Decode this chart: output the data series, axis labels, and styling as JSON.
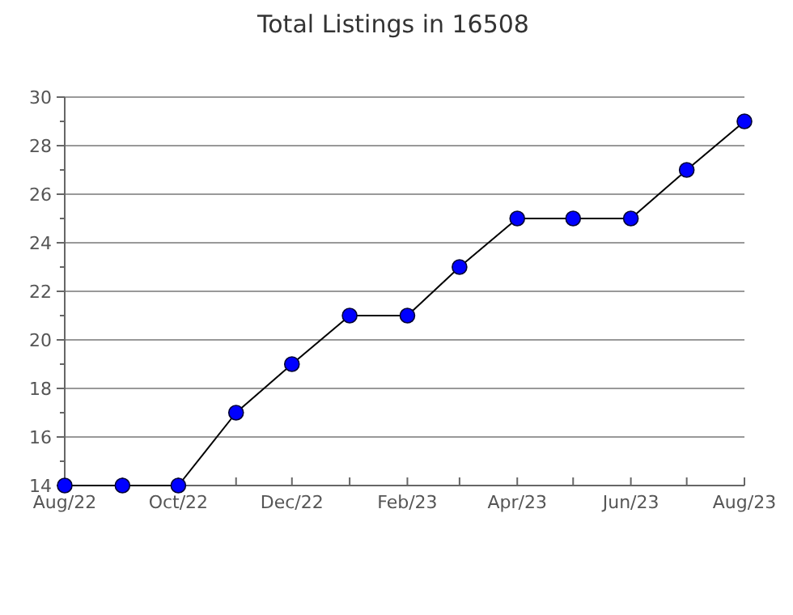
{
  "chart_data": {
    "type": "line",
    "title": "Total Listings in 16508",
    "x": [
      "2022-08",
      "2022-09",
      "2022-10",
      "2022-11",
      "2022-12",
      "2023-01",
      "2023-02",
      "2023-03",
      "2023-04",
      "2023-05",
      "2023-06",
      "2023-07",
      "2023-08"
    ],
    "series": [
      {
        "color": "#0000ff",
        "values": [
          14,
          14,
          14,
          17,
          19,
          21,
          21,
          23,
          25,
          25,
          25,
          27,
          29
        ]
      }
    ],
    "xlim": [
      "2022-08",
      "2023-08"
    ],
    "xticks": [
      {
        "value": "2022-08",
        "label": "Aug/22"
      },
      {
        "value": "2022-09",
        "label": null
      },
      {
        "value": "2022-10",
        "label": "Oct/22"
      },
      {
        "value": "2022-11",
        "label": null
      },
      {
        "value": "2022-12",
        "label": "Dec/22"
      },
      {
        "value": "2023-01",
        "label": null
      },
      {
        "value": "2023-02",
        "label": "Feb/23"
      },
      {
        "value": "2023-03",
        "label": null
      },
      {
        "value": "2023-04",
        "label": "Apr/23"
      },
      {
        "value": "2023-05",
        "label": null
      },
      {
        "value": "2023-06",
        "label": "Jun/23"
      },
      {
        "value": "2023-07",
        "label": null
      },
      {
        "value": "2023-08",
        "label": "Aug/23"
      }
    ],
    "ylim": [
      14,
      30
    ],
    "yticks": [
      14,
      {
        "value": 15,
        "label": null
      },
      16,
      {
        "value": 17,
        "label": null
      },
      18,
      {
        "value": 19,
        "label": null
      },
      20,
      {
        "value": 21,
        "label": null
      },
      22,
      {
        "value": 23,
        "label": null
      },
      24,
      {
        "value": 25,
        "label": null
      },
      26,
      {
        "value": 27,
        "label": null
      },
      28,
      {
        "value": 29,
        "label": null
      },
      30
    ],
    "grid": "y",
    "marker": "circle",
    "line_style": "solid"
  }
}
